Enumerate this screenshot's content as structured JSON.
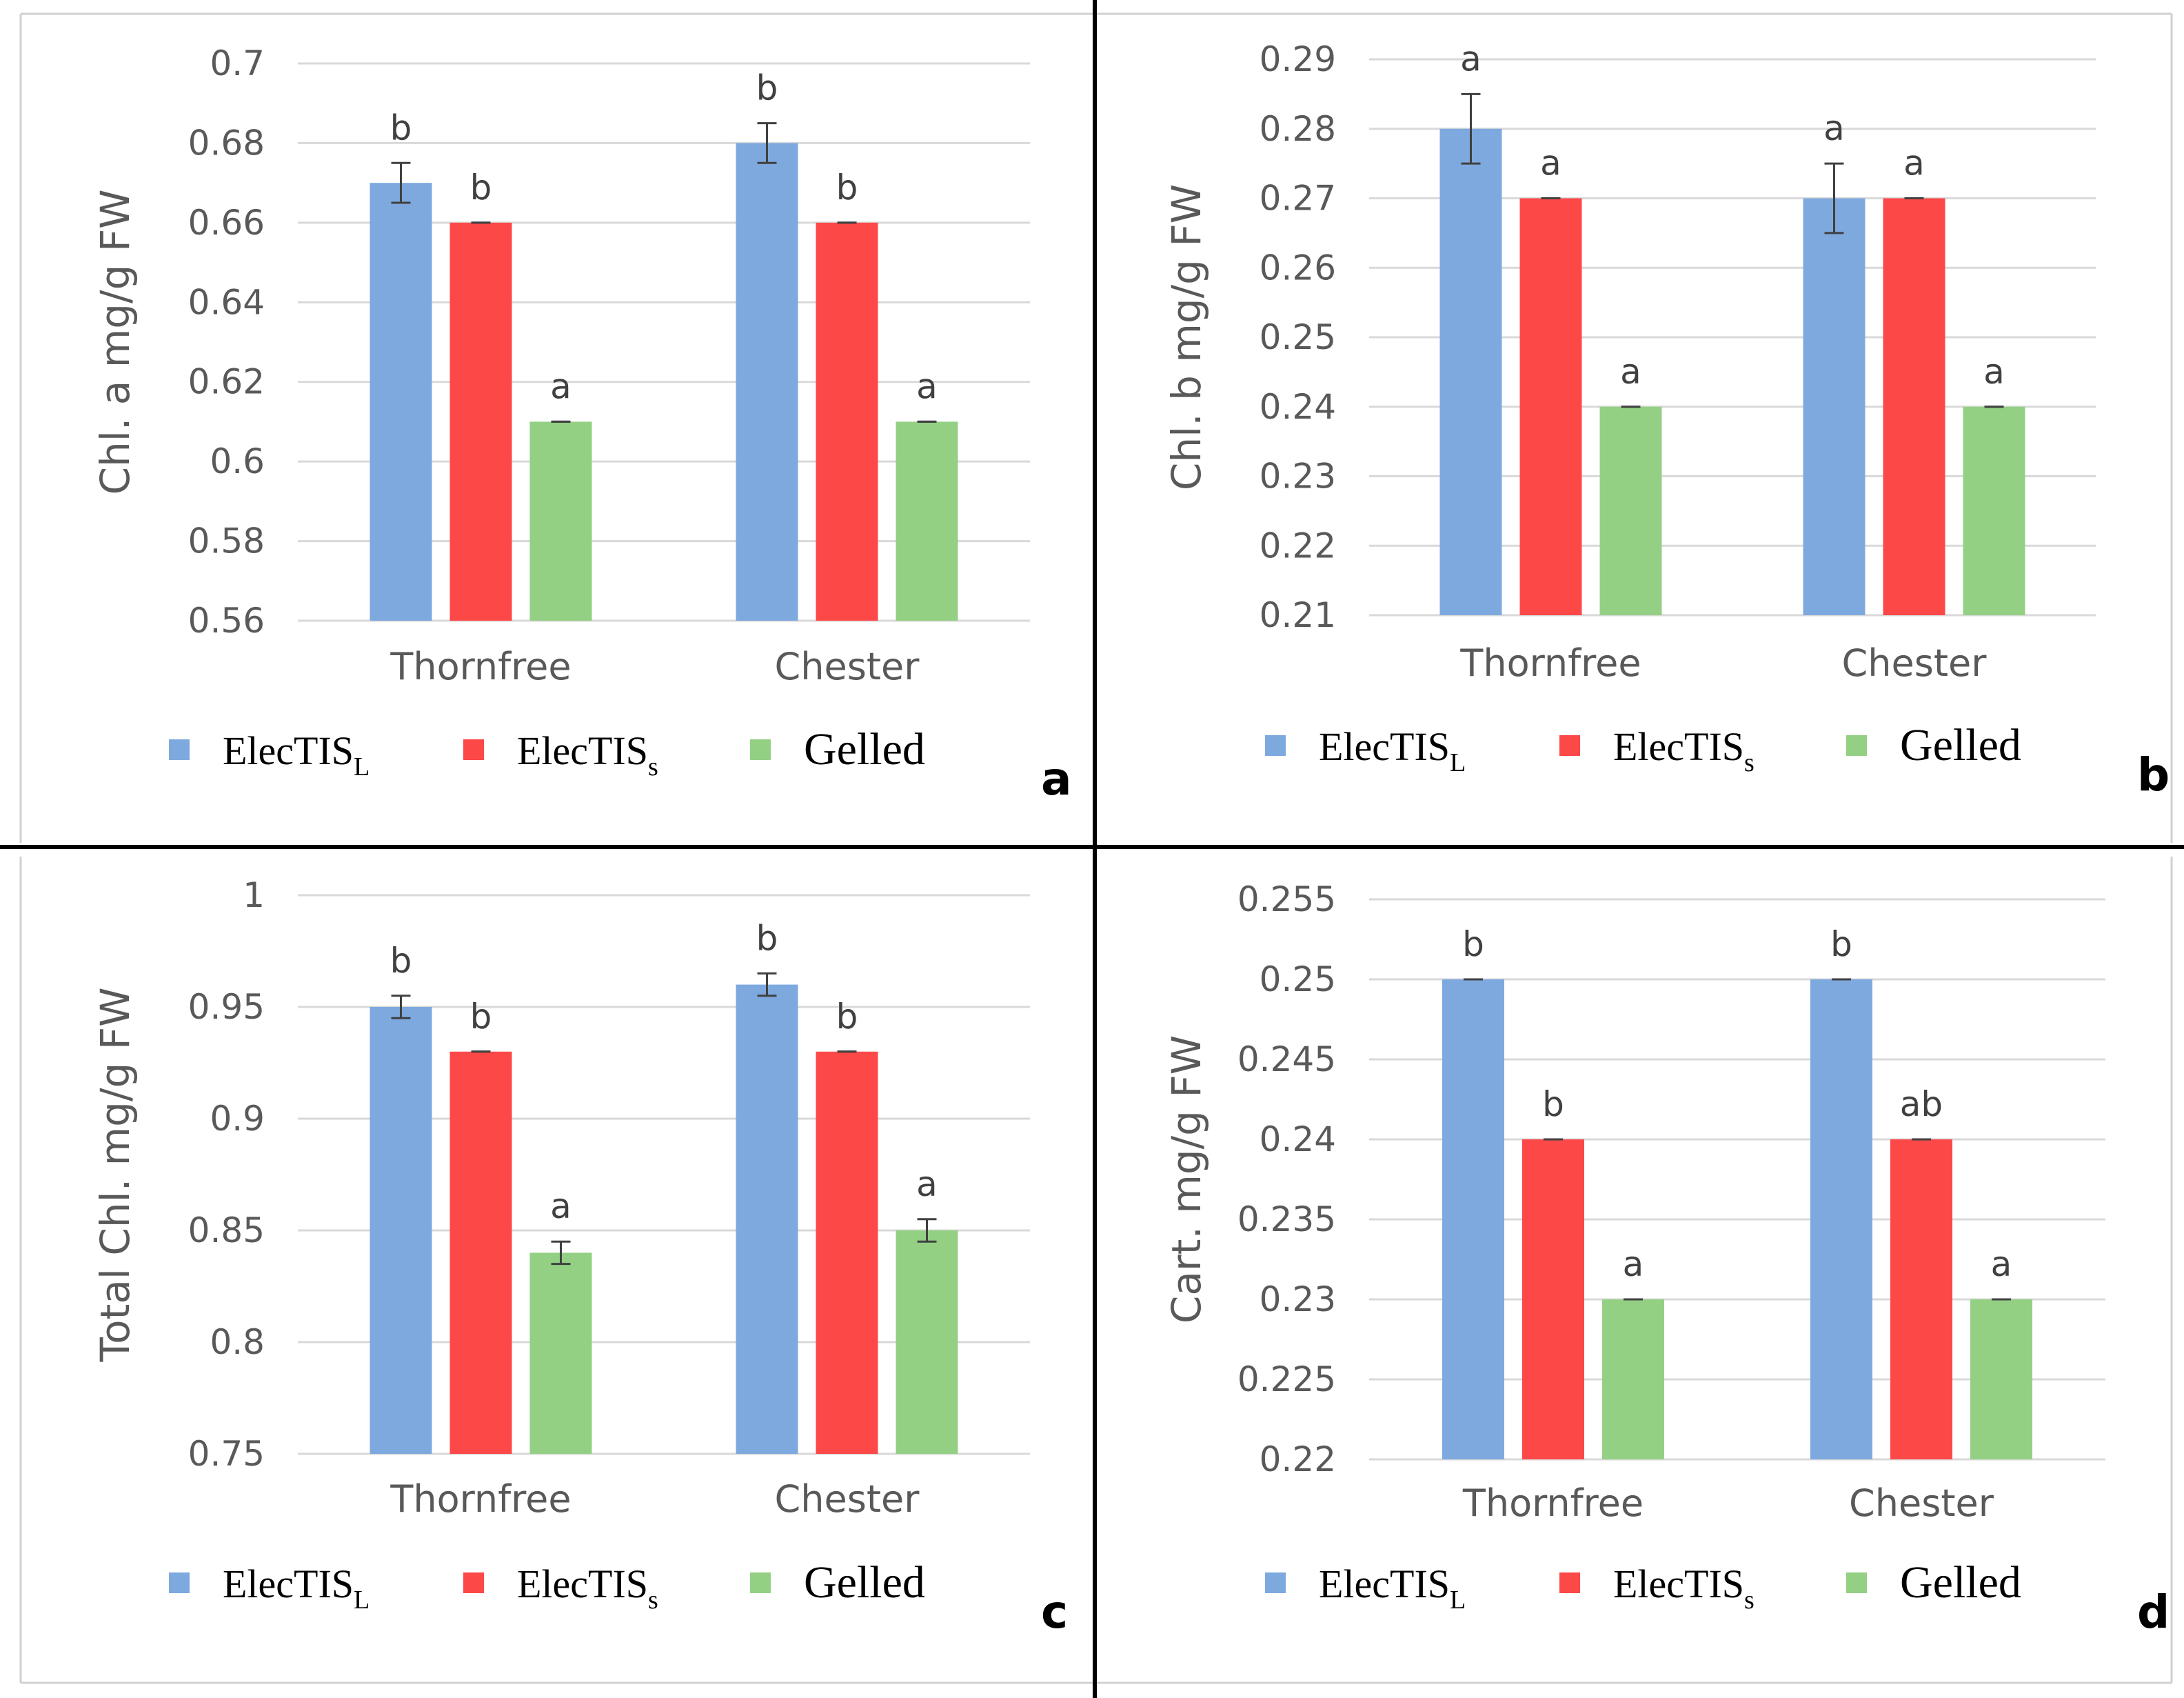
{
  "colors": {
    "ElecTIS_L": "#7ea9df",
    "ElecTIS_s": "#fd4848",
    "Gelled": "#93d083"
  },
  "legend": [
    {
      "main": "ElecTIS",
      "sub": "L",
      "color": "#7ea9df"
    },
    {
      "main": "ElecTIS",
      "sub": "s",
      "color": "#fd4848"
    },
    {
      "main": "Gelled",
      "sub": "",
      "color": "#93d083"
    }
  ],
  "chart_data": [
    {
      "panel": "a",
      "type": "bar",
      "ylabel": "Chl. a mg/g FW",
      "categories": [
        "Thornfree",
        "Chester"
      ],
      "ylim": [
        0.56,
        0.7
      ],
      "yticks": [
        0.56,
        0.58,
        0.6,
        0.62,
        0.64,
        0.66,
        0.68,
        0.7
      ],
      "ytick_labels": [
        "0.56",
        "0.58",
        "0.6",
        "0.62",
        "0.64",
        "0.66",
        "0.68",
        "0.7"
      ],
      "grid": true,
      "legend_position": "bottom",
      "series": [
        {
          "name": "ElecTIS_L",
          "values": [
            0.67,
            0.68
          ],
          "errors": [
            0.005,
            0.005
          ],
          "letters": [
            "b",
            "b"
          ]
        },
        {
          "name": "ElecTIS_s",
          "values": [
            0.66,
            0.66
          ],
          "errors": [
            0,
            0
          ],
          "letters": [
            "b",
            "b"
          ]
        },
        {
          "name": "Gelled",
          "values": [
            0.61,
            0.61
          ],
          "errors": [
            0,
            0
          ],
          "letters": [
            "a",
            "a"
          ]
        }
      ]
    },
    {
      "panel": "b",
      "type": "bar",
      "ylabel": "Chl. b mg/g FW",
      "categories": [
        "Thornfree",
        "Chester"
      ],
      "ylim": [
        0.21,
        0.29
      ],
      "yticks": [
        0.21,
        0.22,
        0.23,
        0.24,
        0.25,
        0.26,
        0.27,
        0.28,
        0.29
      ],
      "ytick_labels": [
        "0.21",
        "0.22",
        "0.23",
        "0.24",
        "0.25",
        "0.26",
        "0.27",
        "0.28",
        "0.29"
      ],
      "grid": true,
      "legend_position": "bottom",
      "series": [
        {
          "name": "ElecTIS_L",
          "values": [
            0.28,
            0.27
          ],
          "errors": [
            0.005,
            0.005
          ],
          "letters": [
            "a",
            "a"
          ]
        },
        {
          "name": "ElecTIS_s",
          "values": [
            0.27,
            0.27
          ],
          "errors": [
            0,
            0
          ],
          "letters": [
            "a",
            "a"
          ]
        },
        {
          "name": "Gelled",
          "values": [
            0.24,
            0.24
          ],
          "errors": [
            0,
            0
          ],
          "letters": [
            "a",
            "a"
          ]
        }
      ]
    },
    {
      "panel": "c",
      "type": "bar",
      "ylabel": "Total Chl. mg/g FW",
      "categories": [
        "Thornfree",
        "Chester"
      ],
      "ylim": [
        0.75,
        1.0
      ],
      "yticks": [
        0.75,
        0.8,
        0.85,
        0.9,
        0.95,
        1.0
      ],
      "ytick_labels": [
        "0.75",
        "0.8",
        "0.85",
        "0.9",
        "0.95",
        "1"
      ],
      "grid": true,
      "legend_position": "bottom",
      "series": [
        {
          "name": "ElecTIS_L",
          "values": [
            0.95,
            0.96
          ],
          "errors": [
            0.005,
            0.005
          ],
          "letters": [
            "b",
            "b"
          ]
        },
        {
          "name": "ElecTIS_s",
          "values": [
            0.93,
            0.93
          ],
          "errors": [
            0,
            0
          ],
          "letters": [
            "b",
            "b"
          ]
        },
        {
          "name": "Gelled",
          "values": [
            0.84,
            0.85
          ],
          "errors": [
            0.005,
            0.005
          ],
          "letters": [
            "a",
            "a"
          ]
        }
      ]
    },
    {
      "panel": "d",
      "type": "bar",
      "ylabel": "Cart. mg/g FW",
      "categories": [
        "Thornfree",
        "Chester"
      ],
      "ylim": [
        0.22,
        0.255
      ],
      "yticks": [
        0.22,
        0.225,
        0.23,
        0.235,
        0.24,
        0.245,
        0.25,
        0.255
      ],
      "ytick_labels": [
        "0.22",
        "0.225",
        "0.23",
        "0.235",
        "0.24",
        "0.245",
        "0.25",
        "0.255"
      ],
      "grid": true,
      "legend_position": "bottom",
      "series": [
        {
          "name": "ElecTIS_L",
          "values": [
            0.25,
            0.25
          ],
          "errors": [
            0,
            0
          ],
          "letters": [
            "b",
            "b"
          ]
        },
        {
          "name": "ElecTIS_s",
          "values": [
            0.24,
            0.24
          ],
          "errors": [
            0,
            0
          ],
          "letters": [
            "b",
            "ab"
          ]
        },
        {
          "name": "Gelled",
          "values": [
            0.23,
            0.23
          ],
          "errors": [
            0,
            0
          ],
          "letters": [
            "a",
            "a"
          ]
        }
      ]
    }
  ]
}
